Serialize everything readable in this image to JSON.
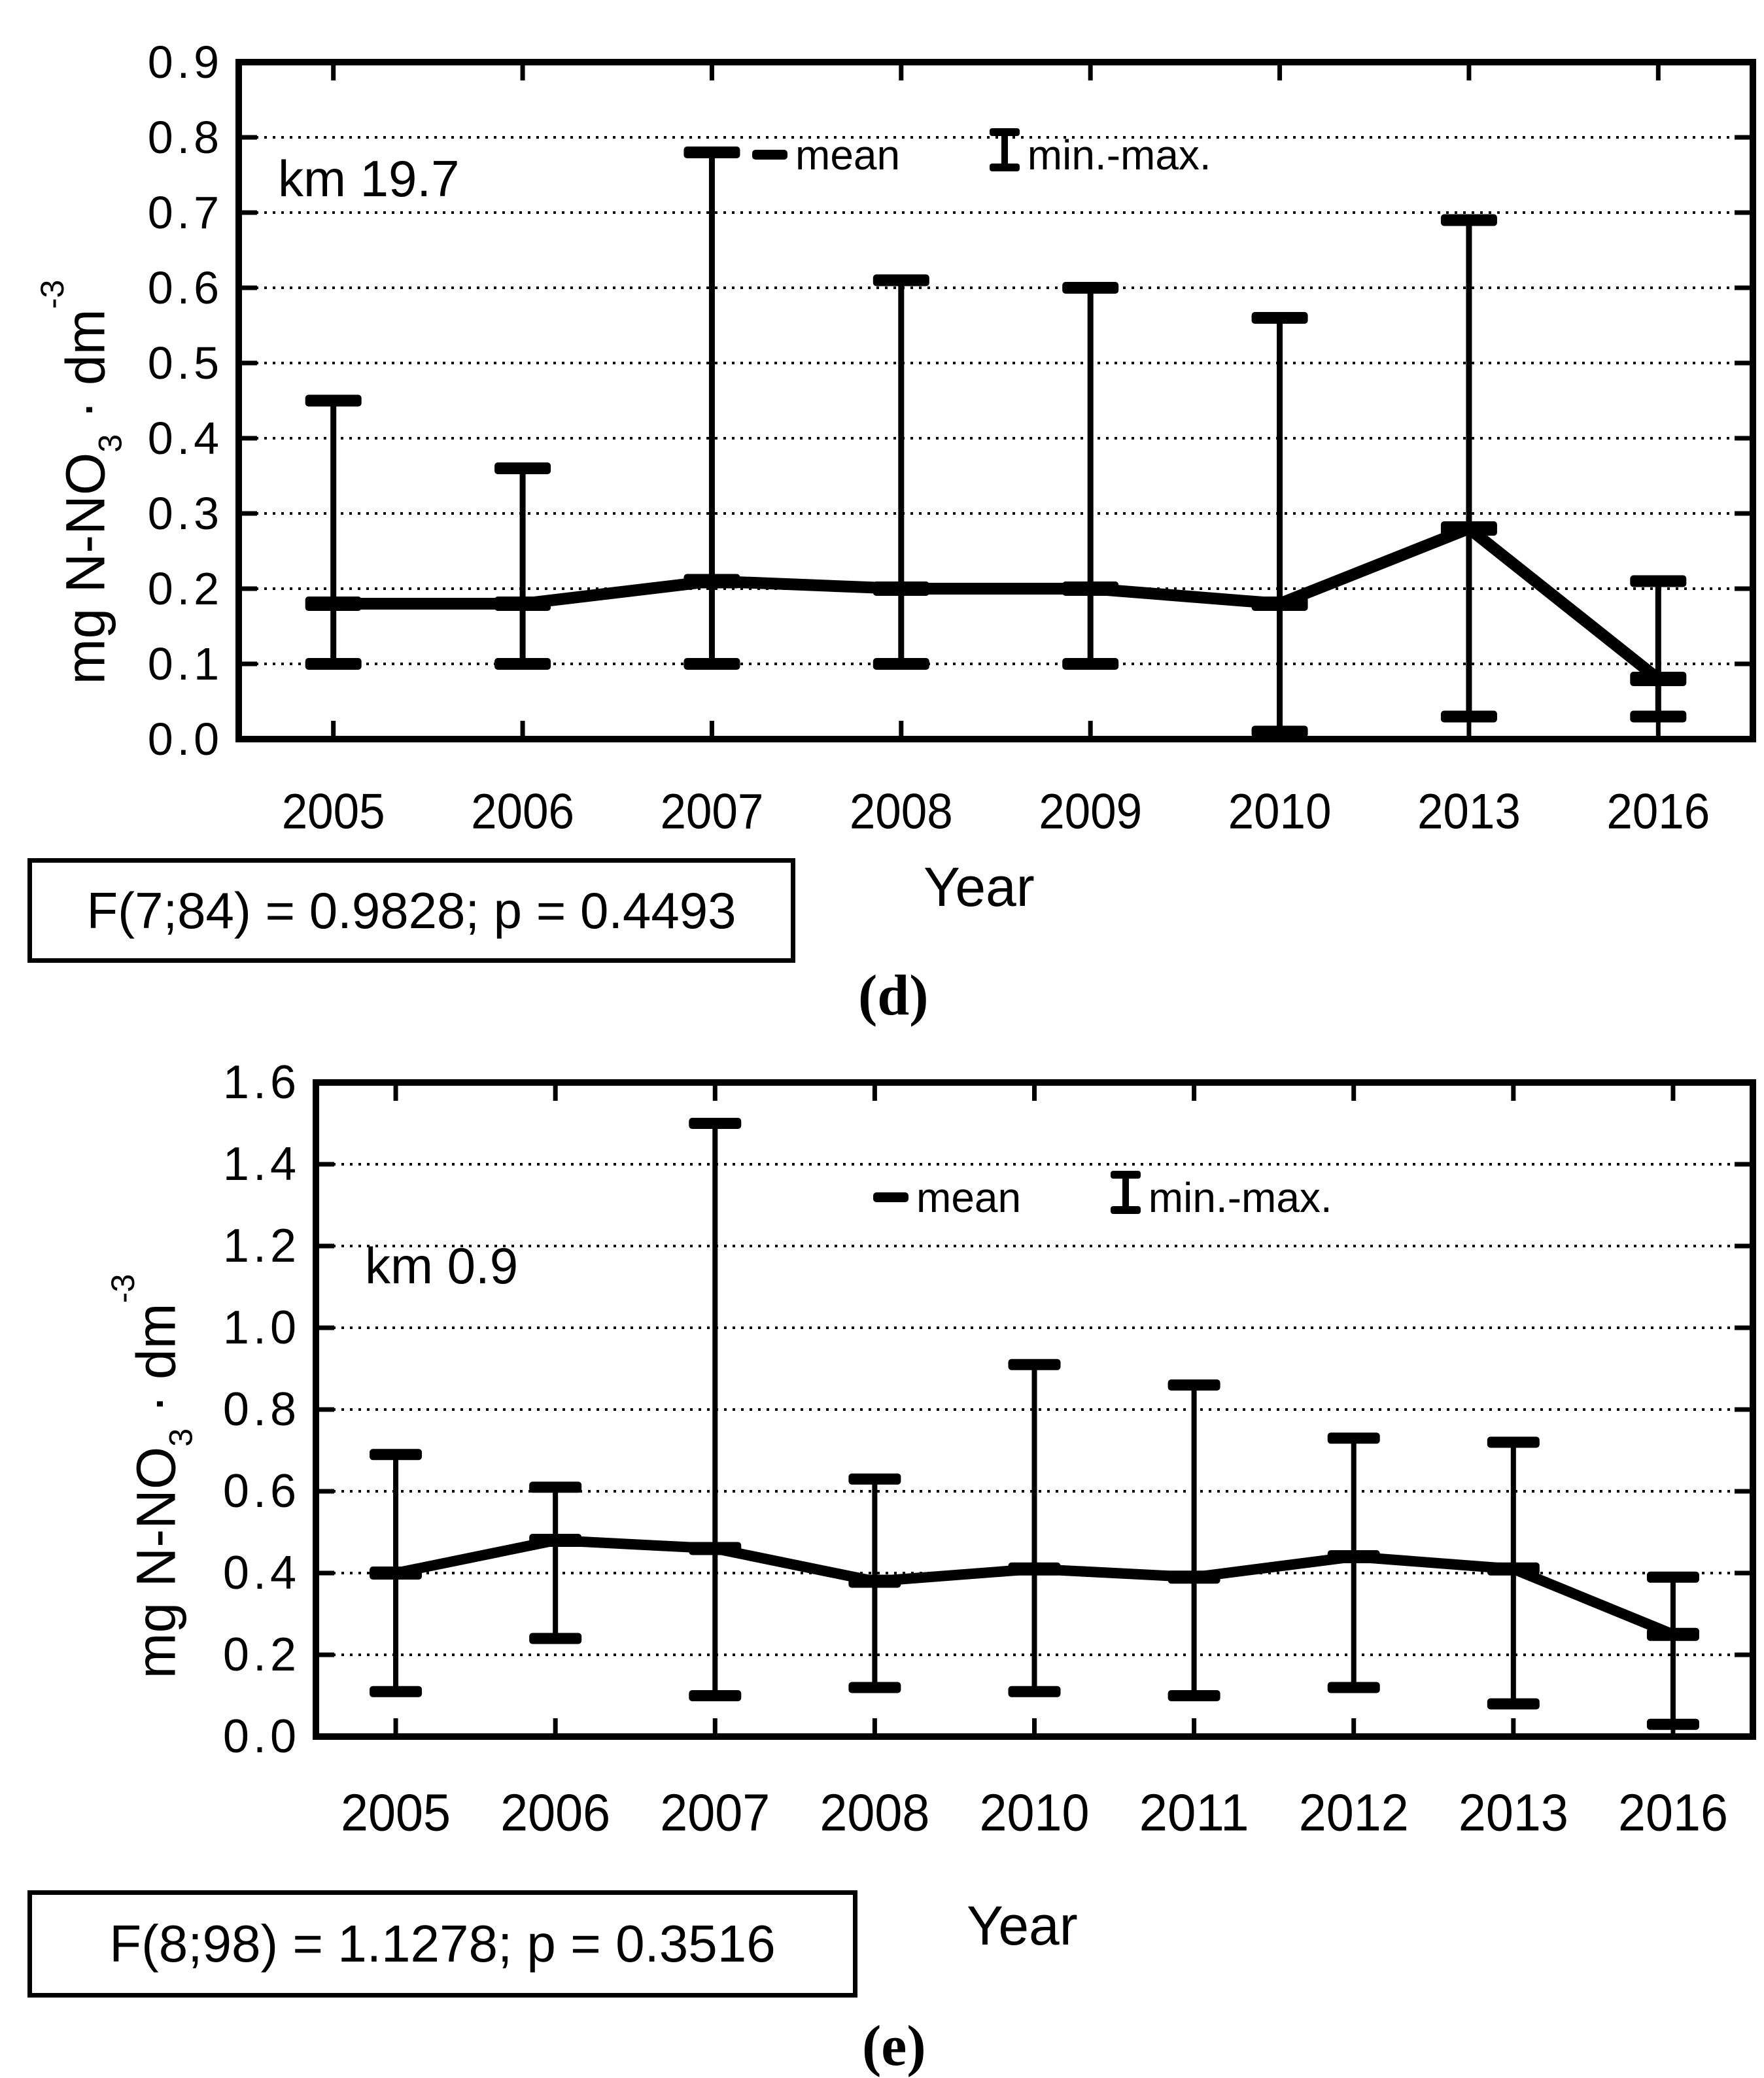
{
  "page": {
    "background": "#ffffff",
    "ink": "#000000"
  },
  "charts": [
    {
      "panel_label": "(d)",
      "site_label": "km 19.7",
      "stat_text": "F(7;84) = 0.9828; p = 0.4493",
      "xlabel": "Year",
      "ylabel": {
        "prefix": "mg N-NO",
        "sub": "3",
        "mid": " · dm",
        "sup": "-3"
      },
      "legend": {
        "mean_label": "mean",
        "minmax_label": "min.-max."
      },
      "chart_data": {
        "type": "line",
        "error_bars": "min-max",
        "title": "km 19.7",
        "xlabel": "Year",
        "ylabel": "mg N-NO3 · dm^-3",
        "categories": [
          "2005",
          "2006",
          "2007",
          "2008",
          "2009",
          "2010",
          "2013",
          "2016"
        ],
        "series": [
          {
            "name": "mean",
            "values": [
              0.18,
              0.18,
              0.21,
              0.2,
              0.2,
              0.18,
              0.28,
              0.08
            ]
          },
          {
            "name": "min",
            "values": [
              0.1,
              0.1,
              0.1,
              0.1,
              0.1,
              0.01,
              0.03,
              0.03
            ]
          },
          {
            "name": "max",
            "values": [
              0.45,
              0.36,
              0.78,
              0.61,
              0.6,
              0.56,
              0.69,
              0.21
            ]
          }
        ],
        "ylim": [
          0,
          0.9
        ],
        "ytick_step": 0.1,
        "grid": "dotted-horizontal",
        "legend_position": "top-center",
        "legend_entries": [
          "mean",
          "min.-max."
        ]
      }
    },
    {
      "panel_label": "(e)",
      "site_label": "km 0.9",
      "stat_text": "F(8;98) = 1.1278; p = 0.3516",
      "xlabel": "Year",
      "ylabel": {
        "prefix": "mg N-NO",
        "sub": "3",
        "mid": " · dm",
        "sup": "-3"
      },
      "legend": {
        "mean_label": "mean",
        "minmax_label": "min.-max."
      },
      "chart_data": {
        "type": "line",
        "error_bars": "min-max",
        "title": "km 0.9",
        "xlabel": "Year",
        "ylabel": "mg N-NO3 · dm^-3",
        "categories": [
          "2005",
          "2006",
          "2007",
          "2008",
          "2010",
          "2011",
          "2012",
          "2013",
          "2016"
        ],
        "series": [
          {
            "name": "mean",
            "values": [
              0.4,
              0.48,
              0.46,
              0.38,
              0.41,
              0.39,
              0.44,
              0.41,
              0.25
            ]
          },
          {
            "name": "min",
            "values": [
              0.11,
              0.24,
              0.1,
              0.12,
              0.11,
              0.1,
              0.12,
              0.08,
              0.03
            ]
          },
          {
            "name": "max",
            "values": [
              0.69,
              0.61,
              1.5,
              0.63,
              0.91,
              0.86,
              0.73,
              0.72,
              0.39
            ]
          }
        ],
        "ylim": [
          0,
          1.6
        ],
        "ytick_step": 0.2,
        "grid": "dotted-horizontal",
        "legend_position": "top-center",
        "legend_entries": [
          "mean",
          "min.-max."
        ]
      }
    }
  ]
}
